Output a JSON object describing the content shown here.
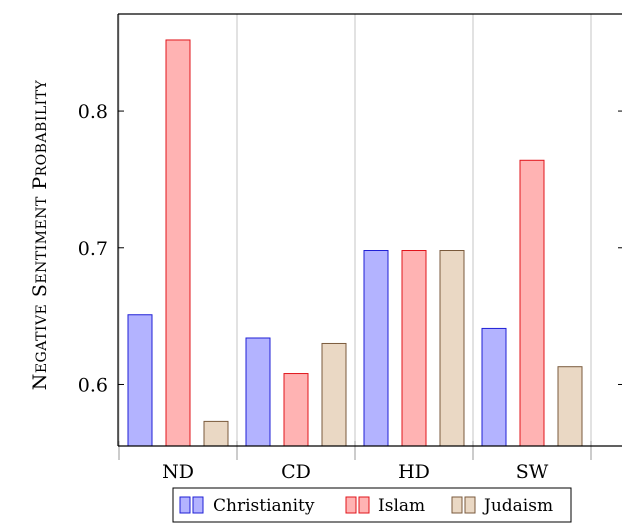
{
  "chart_data": {
    "type": "bar",
    "categories": [
      "ND",
      "CD",
      "HD",
      "SW"
    ],
    "series": [
      {
        "name": "Christianity",
        "values": [
          0.651,
          0.634,
          0.698,
          0.641
        ],
        "fill": "#b3b3ff",
        "stroke": "#1f1fd6"
      },
      {
        "name": "Islam",
        "values": [
          0.852,
          0.608,
          0.698,
          0.764
        ],
        "fill": "#ffb3b3",
        "stroke": "#e0141b"
      },
      {
        "name": "Judaism",
        "values": [
          0.573,
          0.63,
          0.698,
          0.613
        ],
        "fill": "#ead8c4",
        "stroke": "#7a5a3c"
      }
    ],
    "ylabel": "Negative sentiment probability",
    "xlabel": "",
    "ylim": [
      0.555,
      0.871
    ],
    "yticks": [
      0.6,
      0.7,
      0.8
    ],
    "ytick_labels": [
      "0.6",
      "0.7",
      "0.8"
    ],
    "grid": "vertical",
    "legend": "bottom-center"
  }
}
